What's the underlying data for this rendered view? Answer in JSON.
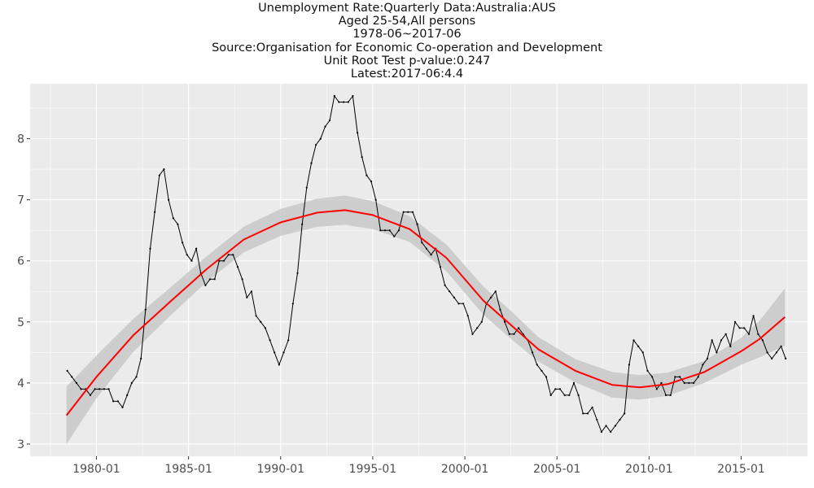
{
  "titles": [
    "Unemployment Rate:Quarterly Data:Australia:AUS",
    "Aged 25-54,All persons",
    "1978-06~2017-06",
    "Source:Organisation for Economic Co-operation and Development",
    "Unit Root Test p-value:0.247",
    "Latest:2017-06:4.4"
  ],
  "colors": {
    "panel": "#ebebeb",
    "grid_major": "#ffffff",
    "series": "#000000",
    "trend": "#ff0000",
    "ribbon": "#c8c8c8"
  },
  "chart_data": {
    "type": "line",
    "title": "Unemployment Rate:Quarterly Data:Australia:AUS",
    "xlabel": "",
    "ylabel": "",
    "xlim": [
      1976.4,
      2018.6
    ],
    "ylim": [
      2.8,
      8.9
    ],
    "x_ticks": [
      1980,
      1985,
      1990,
      1995,
      2000,
      2005,
      2010,
      2015
    ],
    "x_tick_labels": [
      "1980-01",
      "1985-01",
      "1990-01",
      "1995-01",
      "2000-01",
      "2005-01",
      "2010-01",
      "2015-01"
    ],
    "y_ticks": [
      3,
      4,
      5,
      6,
      7,
      8
    ],
    "y_tick_labels": [
      "3",
      "4",
      "5",
      "6",
      "7",
      "8"
    ],
    "grid": true,
    "legend": "none",
    "series": [
      {
        "x_start": "1978-06",
        "x_end": "2017-06",
        "frequency": "quarterly",
        "values": [
          4.2,
          4.1,
          4.0,
          3.9,
          3.9,
          3.8,
          3.9,
          3.9,
          3.9,
          3.9,
          3.7,
          3.7,
          3.6,
          3.8,
          4.0,
          4.1,
          4.4,
          5.2,
          6.2,
          6.8,
          7.4,
          7.5,
          7.0,
          6.7,
          6.6,
          6.3,
          6.1,
          6.0,
          6.2,
          5.8,
          5.6,
          5.7,
          5.7,
          6.0,
          6.0,
          6.1,
          6.1,
          5.9,
          5.7,
          5.4,
          5.5,
          5.1,
          5.0,
          4.9,
          4.7,
          4.5,
          4.3,
          4.5,
          4.7,
          5.3,
          5.8,
          6.6,
          7.2,
          7.6,
          7.9,
          8.0,
          8.2,
          8.3,
          8.7,
          8.6,
          8.6,
          8.6,
          8.7,
          8.1,
          7.7,
          7.4,
          7.3,
          7.0,
          6.5,
          6.5,
          6.5,
          6.4,
          6.5,
          6.8,
          6.8,
          6.8,
          6.6,
          6.3,
          6.2,
          6.1,
          6.2,
          5.9,
          5.6,
          5.5,
          5.4,
          5.3,
          5.3,
          5.1,
          4.8,
          4.9,
          5.0,
          5.3,
          5.4,
          5.5,
          5.2,
          5.0,
          4.8,
          4.8,
          4.9,
          4.8,
          4.7,
          4.5,
          4.3,
          4.2,
          4.1,
          3.8,
          3.9,
          3.9,
          3.8,
          3.8,
          4.0,
          3.8,
          3.5,
          3.5,
          3.6,
          3.4,
          3.2,
          3.3,
          3.2,
          3.3,
          3.4,
          3.5,
          4.3,
          4.7,
          4.6,
          4.5,
          4.2,
          4.1,
          3.9,
          4.0,
          3.8,
          3.8,
          4.1,
          4.1,
          4.0,
          4.0,
          4.0,
          4.1,
          4.3,
          4.4,
          4.7,
          4.5,
          4.7,
          4.8,
          4.6,
          5.0,
          4.9,
          4.9,
          4.8,
          5.1,
          4.8,
          4.7,
          4.5,
          4.4,
          4.5,
          4.6,
          4.4
        ]
      },
      {
        "name": "smooth",
        "x": [
          1978.375,
          1980,
          1982,
          1984,
          1986,
          1988,
          1990,
          1992,
          1993.5,
          1995,
          1997,
          1999,
          2001,
          2002.5,
          2004,
          2006,
          2008,
          2009.5,
          2011,
          2013,
          2015,
          2016,
          2017.375
        ],
        "values": [
          3.47,
          4.1,
          4.78,
          5.33,
          5.87,
          6.35,
          6.63,
          6.79,
          6.83,
          6.75,
          6.52,
          6.05,
          5.35,
          4.95,
          4.55,
          4.2,
          3.97,
          3.93,
          3.98,
          4.18,
          4.52,
          4.72,
          5.08
        ],
        "band_half_width": [
          0.47,
          0.35,
          0.27,
          0.23,
          0.21,
          0.21,
          0.22,
          0.23,
          0.24,
          0.23,
          0.21,
          0.22,
          0.23,
          0.23,
          0.2,
          0.19,
          0.21,
          0.2,
          0.19,
          0.18,
          0.22,
          0.3,
          0.47
        ]
      }
    ]
  }
}
